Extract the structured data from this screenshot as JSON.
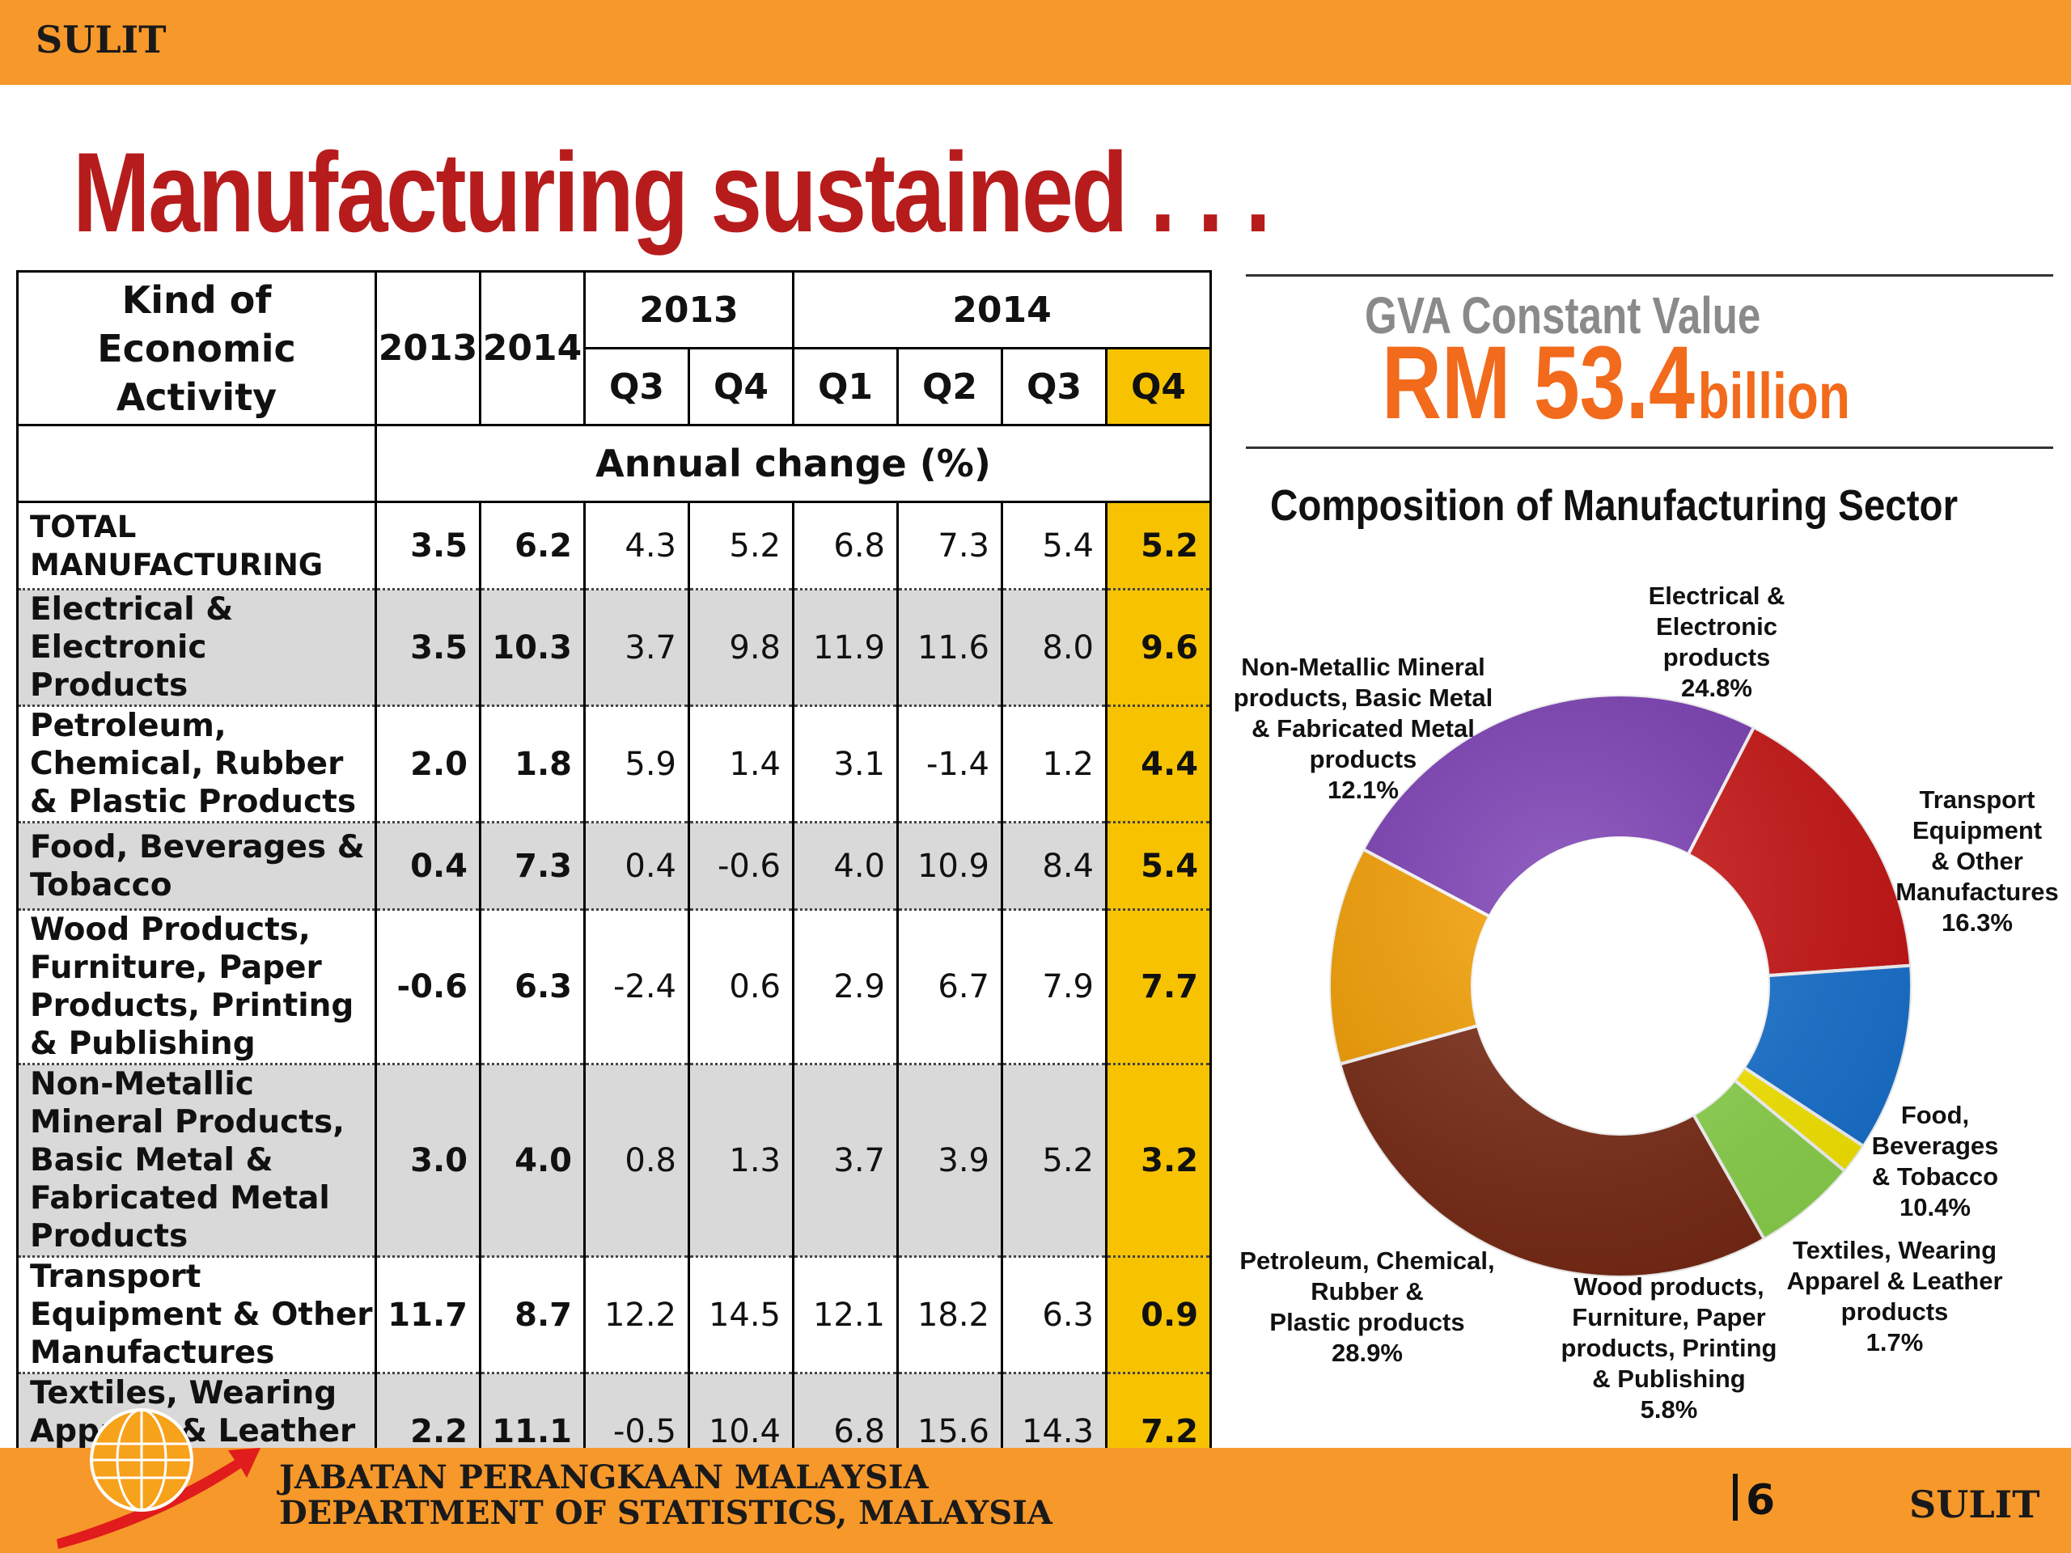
{
  "header": {
    "classification": "SULIT"
  },
  "title": "Manufacturing sustained . . .",
  "table": {
    "activity_header": "Kind of Economic Activity",
    "years": [
      "2013",
      "2014"
    ],
    "quarter_groups": [
      {
        "year": "2013",
        "quarters": [
          "Q3",
          "Q4"
        ]
      },
      {
        "year": "2014",
        "quarters": [
          "Q1",
          "Q2",
          "Q3",
          "Q4"
        ]
      }
    ],
    "annual_change_label": "Annual change  (%)",
    "rows": [
      {
        "label": "TOTAL MANUFACTURING",
        "y2013": "3.5",
        "y2014": "6.2",
        "q": [
          "4.3",
          "5.2",
          "6.8",
          "7.3",
          "5.4",
          "5.2"
        ]
      },
      {
        "label": "Electrical & Electronic Products",
        "y2013": "3.5",
        "y2014": "10.3",
        "q": [
          "3.7",
          "9.8",
          "11.9",
          "11.6",
          "8.0",
          "9.6"
        ]
      },
      {
        "label": "Petroleum, Chemical, Rubber & Plastic Products",
        "y2013": "2.0",
        "y2014": "1.8",
        "q": [
          "5.9",
          "1.4",
          "3.1",
          "-1.4",
          "1.2",
          "4.4"
        ]
      },
      {
        "label": "Food, Beverages & Tobacco",
        "y2013": "0.4",
        "y2014": "7.3",
        "q": [
          "0.4",
          "-0.6",
          "4.0",
          "10.9",
          "8.4",
          "5.4"
        ]
      },
      {
        "label": "Wood Products, Furniture, Paper Products, Printing & Publishing",
        "y2013": "-0.6",
        "y2014": "6.3",
        "q": [
          "-2.4",
          "0.6",
          "2.9",
          "6.7",
          "7.9",
          "7.7"
        ]
      },
      {
        "label": "Non-Metallic Mineral Products, Basic Metal & Fabricated Metal Products",
        "y2013": "3.0",
        "y2014": "4.0",
        "q": [
          "0.8",
          "1.3",
          "3.7",
          "3.9",
          "5.2",
          "3.2"
        ]
      },
      {
        "label": "Transport Equipment & Other Manufactures",
        "y2013": "11.7",
        "y2014": "8.7",
        "q": [
          "12.2",
          "14.5",
          "12.1",
          "18.2",
          "6.3",
          "0.9"
        ]
      },
      {
        "label": "Textiles, Wearing Apparel & Leather Products",
        "y2013": "2.2",
        "y2014": "11.1",
        "q": [
          "-0.5",
          "10.4",
          "6.8",
          "15.6",
          "14.3",
          "7.2"
        ]
      }
    ]
  },
  "gva": {
    "caption": "GVA Constant Value",
    "value_main": "RM 53.4",
    "value_unit": "billion"
  },
  "chart_data": {
    "type": "pie",
    "title": "Composition of Manufacturing Sector",
    "donut": true,
    "unit": "%",
    "slices": [
      {
        "name": "Electrical & Electronic products",
        "label_lines": [
          "Electrical &",
          "Electronic",
          "products",
          "24.8%"
        ],
        "value": 24.8,
        "color": "#7b3db5"
      },
      {
        "name": "Transport Equipment & Other Manufactures",
        "label_lines": [
          "Transport",
          "Equipment",
          "& Other",
          "Manufactures",
          "16.3%"
        ],
        "value": 16.3,
        "color": "#cc1414"
      },
      {
        "name": "Food, Beverages & Tobacco",
        "label_lines": [
          "Food,",
          "Beverages",
          "& Tobacco",
          "10.4%"
        ],
        "value": 10.4,
        "color": "#1874d4"
      },
      {
        "name": "Textiles, Wearing Apparel & Leather products",
        "label_lines": [
          "Textiles, Wearing",
          "Apparel & Leather",
          "products",
          "1.7%"
        ],
        "value": 1.7,
        "color": "#ffee00"
      },
      {
        "name": "Wood products, Furniture, Paper products, Printing & Publishing",
        "label_lines": [
          "Wood products,",
          "Furniture, Paper",
          "products, Printing",
          "& Publishing",
          "5.8%"
        ],
        "value": 5.8,
        "color": "#8fd94f"
      },
      {
        "name": "Petroleum, Chemical, Rubber & Plastic products",
        "label_lines": [
          "Petroleum, Chemical,",
          "Rubber &",
          "Plastic products",
          "28.9%"
        ],
        "value": 28.9,
        "color": "#7a2a14"
      },
      {
        "name": "Non-Metallic Mineral products, Basic Metal & Fabricated Metal products",
        "label_lines": [
          "Non-Metallic Mineral",
          "products, Basic Metal",
          "& Fabricated Metal",
          "products",
          "12.1%"
        ],
        "value": 12.1,
        "color": "#f7a000"
      }
    ]
  },
  "footer": {
    "dept_line1": "JABATAN PERANGKAAN MALAYSIA",
    "dept_line2": "DEPARTMENT OF STATISTICS, MALAYSIA",
    "page_number": "6",
    "classification": "SULIT"
  }
}
